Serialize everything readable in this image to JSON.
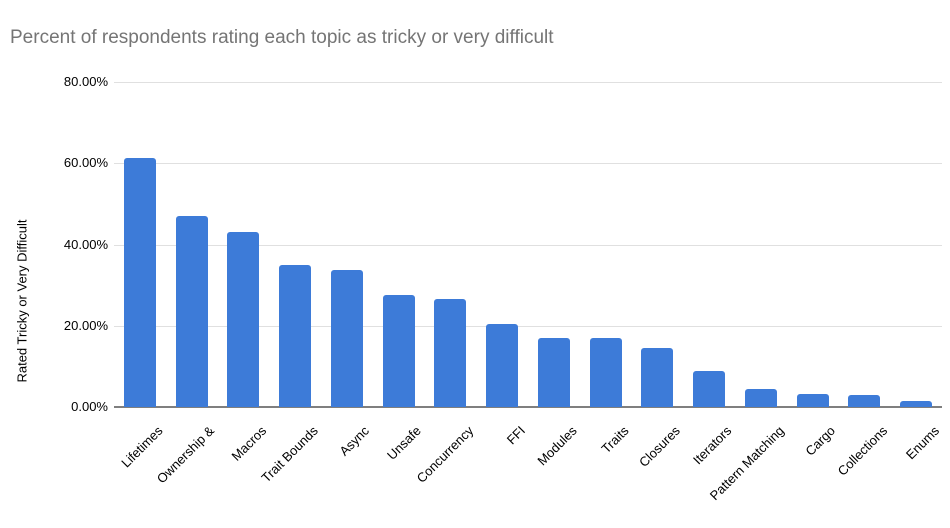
{
  "chart_data": {
    "type": "bar",
    "title": "Percent of respondents rating each topic as tricky or very difficult",
    "xlabel": "",
    "ylabel": "Rated Tricky or Very Difficult",
    "categories": [
      "Lifetimes",
      "Ownership &",
      "Macros",
      "Trait Bounds",
      "Async",
      "Unsafe",
      "Concurrency",
      "FFI",
      "Modules",
      "Traits",
      "Closures",
      "Iterators",
      "Pattern Matching",
      "Cargo",
      "Collections",
      "Enums"
    ],
    "values": [
      61.4,
      47.0,
      43.0,
      34.9,
      33.7,
      27.6,
      26.7,
      20.4,
      17.1,
      17.0,
      14.6,
      8.8,
      4.4,
      3.3,
      3.0,
      1.4
    ],
    "ylim": [
      0,
      80
    ],
    "ytick_labels": [
      "0.00%",
      "20.00%",
      "40.00%",
      "60.00%",
      "80.00%"
    ],
    "ytick_values": [
      0,
      20,
      40,
      60,
      80
    ],
    "grid": true,
    "legend_position": "none",
    "colors": {
      "bar": "#3d7bd8",
      "gridline": "#e0e0e0",
      "axis_line": "#7f7f7f",
      "title_text": "#757575",
      "label_text": "#000000",
      "background": "#ffffff"
    }
  }
}
